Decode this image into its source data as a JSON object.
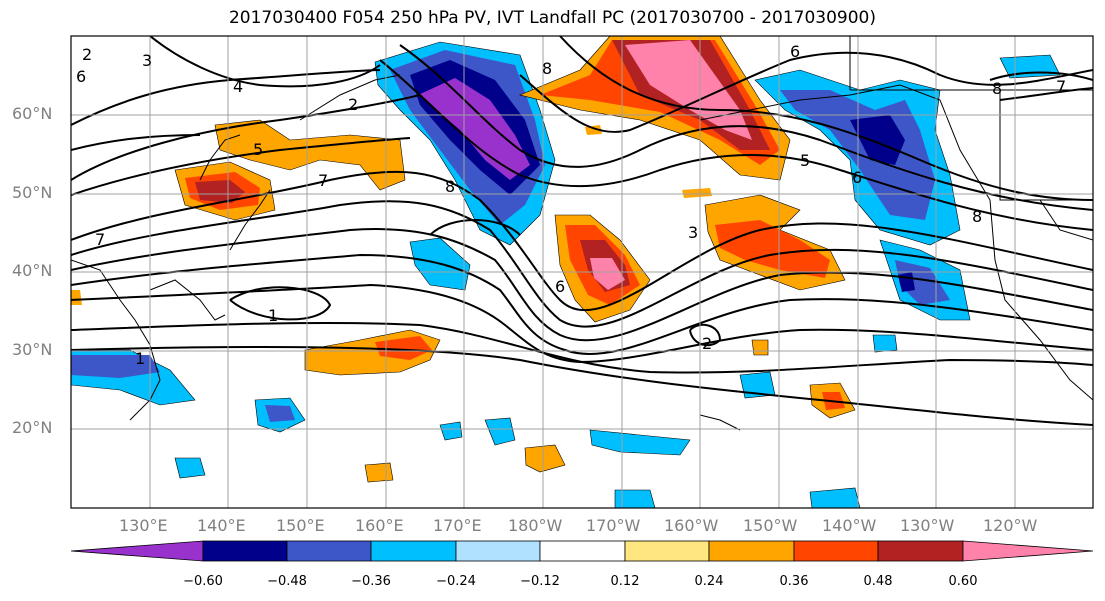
{
  "title": "2017030400 F054 250 hPa PV, IVT Landfall PC (2017030700 - 2017030900)",
  "lat_labels": [
    "60°N",
    "50°N",
    "40°N",
    "30°N",
    "20°N"
  ],
  "lon_labels": [
    "130°E",
    "140°E",
    "150°E",
    "160°E",
    "170°E",
    "180°W",
    "170°W",
    "160°W",
    "150°W",
    "140°W",
    "130°W",
    "120°W"
  ],
  "colorbar": {
    "labels": [
      "−0.60",
      "−0.48",
      "−0.36",
      "−0.24",
      "−0.12",
      "0.12",
      "0.24",
      "0.36",
      "0.48",
      "0.60"
    ],
    "colors": [
      "#9932cc",
      "#00008b",
      "#3d57c9",
      "#00bfff",
      "#b0e2ff",
      "#ffffff",
      "#ffe680",
      "#ffa500",
      "#ff4500",
      "#b22222",
      "#ff82ab"
    ]
  },
  "contour_labels": [
    "2",
    "3",
    "6",
    "4",
    "2",
    "5",
    "7",
    "7",
    "8",
    "1",
    "1",
    "2",
    "3",
    "6",
    "6",
    "8",
    "5",
    "8",
    "6",
    "7",
    "8"
  ],
  "colors": {
    "border": "#000000",
    "grid": "#a0a0a0",
    "axis_text": "#808080"
  }
}
